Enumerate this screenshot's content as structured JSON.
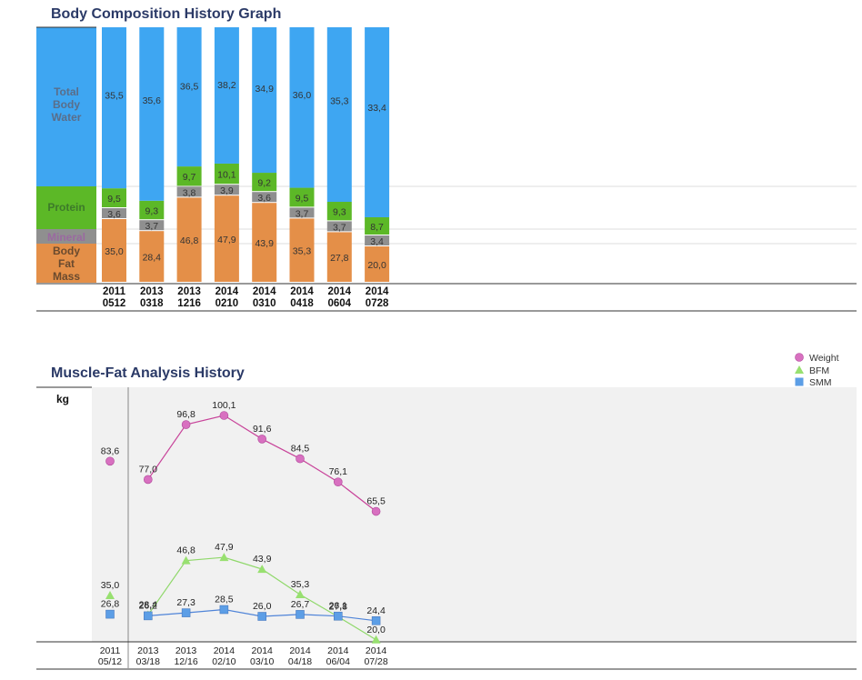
{
  "titles": {
    "composition": "Body Composition History Graph",
    "muscle_fat": "Muscle-Fat Analysis History"
  },
  "composition_legend": {
    "water": "Total Body Water",
    "protein": "Protein",
    "mineral": "Mineral",
    "fat": "Body Fat Mass"
  },
  "muscle_fat_unit": "kg",
  "colors": {
    "water": "#3ea6f2",
    "protein": "#5cb827",
    "mineral": "#8f8f8f",
    "fat": "#e48f48",
    "weight": "#d870c0",
    "bfm": "#98e070",
    "smm": "#5c9ee6",
    "plot_bg": "#f1f1f1"
  },
  "chart_data": [
    {
      "type": "bar",
      "stacked": true,
      "title": "Body Composition History Graph",
      "categories": [
        "2011 0512",
        "2013 0318",
        "2013 1216",
        "2014 0210",
        "2014 0310",
        "2014 0418",
        "2014 0604",
        "2014 0728"
      ],
      "series": [
        {
          "name": "Body Fat Mass",
          "values": [
            35.0,
            28.4,
            46.8,
            47.9,
            43.9,
            35.3,
            27.8,
            20.0
          ],
          "labels": [
            "35,0",
            "28,4",
            "46,8",
            "47,9",
            "43,9",
            "35,3",
            "27,8",
            "20,0"
          ]
        },
        {
          "name": "Mineral",
          "values": [
            3.6,
            3.7,
            3.8,
            3.9,
            3.6,
            3.7,
            3.7,
            3.4
          ],
          "labels": [
            "3,6",
            "3,7",
            "3,8",
            "3,9",
            "3,6",
            "3,7",
            "3,7",
            "3,4"
          ]
        },
        {
          "name": "Protein",
          "values": [
            9.5,
            9.3,
            9.7,
            10.1,
            9.2,
            9.5,
            9.3,
            8.7
          ],
          "labels": [
            "9,5",
            "9,3",
            "9,7",
            "10,1",
            "9,2",
            "9,5",
            "9,3",
            "8,7"
          ]
        },
        {
          "name": "Total Body Water",
          "values": [
            35.5,
            35.6,
            36.5,
            38.2,
            34.9,
            36.0,
            35.3,
            33.4
          ],
          "labels": [
            "35,5",
            "35,6",
            "36,5",
            "38,2",
            "34,9",
            "36,0",
            "35,3",
            "33,4"
          ]
        }
      ]
    },
    {
      "type": "line",
      "title": "Muscle-Fat Analysis History",
      "ylabel": "kg",
      "categories": [
        "2011 05/12",
        "2013 03/18",
        "2013 12/16",
        "2014 02/10",
        "2014 03/10",
        "2014 04/18",
        "2014 06/04",
        "2014 07/28"
      ],
      "legend_position": "top-right",
      "series": [
        {
          "name": "Weight",
          "values": [
            83.6,
            77.0,
            96.8,
            100.1,
            91.6,
            84.5,
            76.1,
            65.5
          ],
          "labels": [
            "83,6",
            "77,0",
            "96,8",
            "100,1",
            "91,6",
            "84,5",
            "76,1",
            "65,5"
          ]
        },
        {
          "name": "BFM",
          "values": [
            35.0,
            28.4,
            46.8,
            47.9,
            43.9,
            35.3,
            27.8,
            20.0
          ],
          "labels": [
            "35,0",
            "28,4",
            "46,8",
            "47,9",
            "43,9",
            "35,3",
            "27,8",
            "20,0"
          ]
        },
        {
          "name": "SMM",
          "values": [
            26.8,
            26.2,
            27.3,
            28.5,
            26.0,
            26.7,
            26.1,
            24.4
          ],
          "labels": [
            "26,8",
            "26,2",
            "27,3",
            "28,5",
            "26,0",
            "26,7",
            "26,1",
            "24,4"
          ]
        }
      ]
    }
  ]
}
